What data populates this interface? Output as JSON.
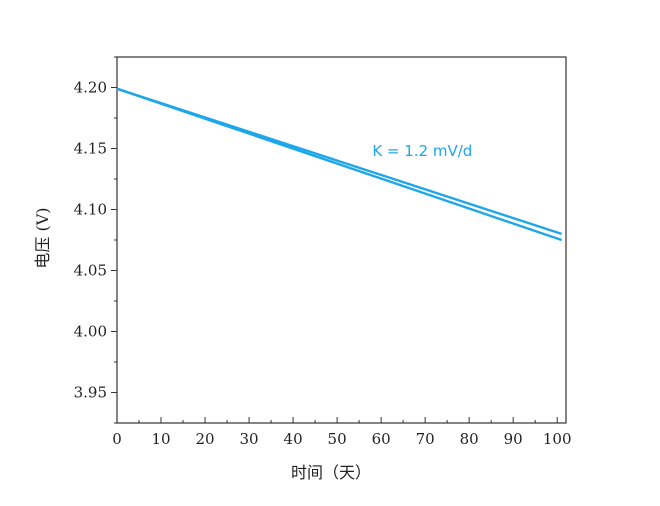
{
  "chart_data": {
    "type": "line",
    "title": "",
    "xlabel": "时间（天）",
    "ylabel": "电压 (V)",
    "xlim": [
      0,
      102
    ],
    "ylim": [
      3.925,
      4.225
    ],
    "x_ticks": [
      0,
      10,
      20,
      30,
      40,
      50,
      60,
      70,
      80,
      90,
      100
    ],
    "x_tick_labels": [
      "0",
      "10",
      "20",
      "30",
      "40",
      "50",
      "60",
      "70",
      "80",
      "90",
      "100"
    ],
    "y_ticks": [
      3.95,
      4.0,
      4.05,
      4.1,
      4.15,
      4.2
    ],
    "y_tick_labels": [
      "3.95",
      "4.00",
      "4.05",
      "4.10",
      "4.15",
      "4.20"
    ],
    "grid": false,
    "legend": "none",
    "series_color": "#1ea7e8",
    "series": [
      {
        "x": [
          0,
          101
        ],
        "y": [
          4.199,
          4.08
        ]
      },
      {
        "x": [
          0,
          101
        ],
        "y": [
          4.199,
          4.075
        ]
      }
    ],
    "annotations": [
      {
        "text": "K = 1.2 mV/d",
        "x": 58,
        "y": 4.144
      }
    ]
  }
}
